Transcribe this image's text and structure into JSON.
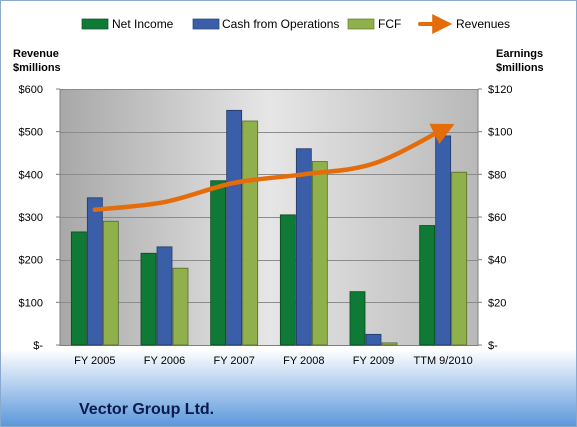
{
  "chart_data": {
    "type": "bar",
    "categories": [
      "FY 2005",
      "FY 2006",
      "FY 2007",
      "FY 2008",
      "FY 2009",
      "TTM 9/2010"
    ],
    "left_axis": {
      "title_lines": [
        "Revenue",
        "$millions"
      ],
      "ylim": [
        0,
        600
      ],
      "ticks": [
        0,
        100,
        200,
        300,
        400,
        500,
        600
      ],
      "tick_labels": [
        "$-",
        "$100",
        "$200",
        "$300",
        "$400",
        "$500",
        "$600"
      ]
    },
    "right_axis": {
      "title_lines": [
        "Earnings",
        "$millions"
      ],
      "ylim": [
        0,
        120
      ],
      "ticks": [
        0,
        20,
        40,
        60,
        80,
        100,
        120
      ],
      "tick_labels": [
        "$-",
        "$20",
        "$40",
        "$60",
        "$80",
        "$100",
        "$120"
      ]
    },
    "series": [
      {
        "name": "Net Income",
        "axis": "right",
        "kind": "bar",
        "color": "#0f7a36",
        "values": [
          53,
          43,
          77,
          61,
          25,
          56
        ]
      },
      {
        "name": "Cash from Operations",
        "axis": "right",
        "kind": "bar",
        "color": "#3a5fa8",
        "values": [
          69,
          46,
          110,
          92,
          5,
          98
        ]
      },
      {
        "name": "FCF",
        "axis": "right",
        "kind": "bar",
        "color": "#8fb04a",
        "values": [
          58,
          36,
          105,
          86,
          1,
          81
        ]
      },
      {
        "name": "Revenues",
        "axis": "left",
        "kind": "line",
        "color": "#e46c0a",
        "values": [
          317,
          335,
          380,
          400,
          425,
          505
        ]
      }
    ],
    "legend_position": "top",
    "grid": true
  },
  "company_name": "Vector Group Ltd."
}
